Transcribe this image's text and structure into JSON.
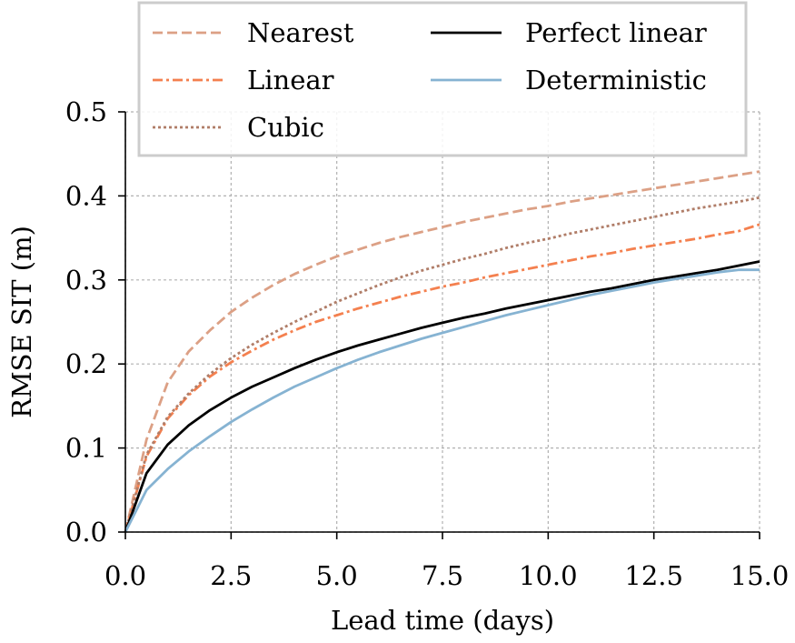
{
  "chart_data": {
    "type": "line",
    "xlabel": "Lead time (days)",
    "ylabel": "RMSE SIT (m)",
    "xlim": [
      0,
      15
    ],
    "ylim": [
      0,
      0.5
    ],
    "xticks": [
      "0.0",
      "2.5",
      "5.0",
      "7.5",
      "10.0",
      "12.5",
      "15.0"
    ],
    "yticks": [
      "0.0",
      "0.1",
      "0.2",
      "0.3",
      "0.4",
      "0.5"
    ],
    "grid": true,
    "legend_position": "top",
    "x": [
      0,
      0.5,
      1,
      1.5,
      2,
      2.5,
      3,
      3.5,
      4,
      4.5,
      5,
      5.5,
      6,
      6.5,
      7,
      7.5,
      8,
      8.5,
      9,
      9.5,
      10,
      10.5,
      11,
      11.5,
      12,
      12.5,
      13,
      13.5,
      14,
      14.5,
      15
    ],
    "series": [
      {
        "name": "Nearest",
        "color": "#dca085",
        "dash": "dashed",
        "values": [
          0,
          0.11,
          0.178,
          0.215,
          0.24,
          0.262,
          0.279,
          0.294,
          0.307,
          0.318,
          0.328,
          0.336,
          0.344,
          0.351,
          0.357,
          0.363,
          0.369,
          0.374,
          0.379,
          0.384,
          0.388,
          0.393,
          0.397,
          0.401,
          0.405,
          0.409,
          0.413,
          0.417,
          0.421,
          0.425,
          0.429
        ]
      },
      {
        "name": "Linear",
        "color": "#f4804f",
        "dash": "dashdot",
        "values": [
          0,
          0.09,
          0.135,
          0.163,
          0.185,
          0.202,
          0.216,
          0.229,
          0.24,
          0.25,
          0.258,
          0.266,
          0.273,
          0.28,
          0.286,
          0.292,
          0.297,
          0.303,
          0.308,
          0.313,
          0.318,
          0.323,
          0.328,
          0.332,
          0.337,
          0.341,
          0.345,
          0.349,
          0.354,
          0.358,
          0.366
        ]
      },
      {
        "name": "Cubic",
        "color": "#b07d68",
        "dash": "dotted",
        "values": [
          0,
          0.092,
          0.137,
          0.165,
          0.188,
          0.207,
          0.223,
          0.237,
          0.25,
          0.262,
          0.274,
          0.284,
          0.294,
          0.303,
          0.311,
          0.318,
          0.325,
          0.331,
          0.338,
          0.344,
          0.349,
          0.355,
          0.36,
          0.365,
          0.37,
          0.375,
          0.38,
          0.385,
          0.389,
          0.393,
          0.398
        ]
      },
      {
        "name": "Perfect linear",
        "color": "#000000",
        "dash": "solid",
        "values": [
          0,
          0.07,
          0.104,
          0.127,
          0.145,
          0.16,
          0.173,
          0.184,
          0.195,
          0.205,
          0.214,
          0.222,
          0.229,
          0.236,
          0.243,
          0.249,
          0.255,
          0.26,
          0.266,
          0.271,
          0.276,
          0.281,
          0.286,
          0.29,
          0.295,
          0.3,
          0.304,
          0.308,
          0.312,
          0.317,
          0.322
        ]
      },
      {
        "name": "Deterministic",
        "color": "#86b3d2",
        "dash": "solid",
        "values": [
          0,
          0.05,
          0.075,
          0.096,
          0.114,
          0.131,
          0.146,
          0.16,
          0.173,
          0.184,
          0.195,
          0.205,
          0.214,
          0.222,
          0.23,
          0.237,
          0.244,
          0.251,
          0.258,
          0.264,
          0.27,
          0.276,
          0.282,
          0.287,
          0.292,
          0.297,
          0.301,
          0.305,
          0.309,
          0.312,
          0.312
        ]
      }
    ]
  }
}
